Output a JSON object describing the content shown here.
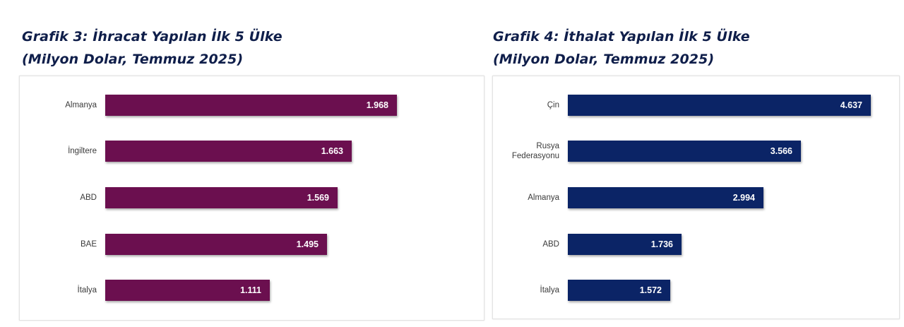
{
  "colors": {
    "export_bar": "#6b0f4f",
    "import_bar": "#0b2466",
    "title": "#0f1e4a"
  },
  "chart_data": [
    {
      "type": "bar",
      "orientation": "horizontal",
      "title": "Grafik 3: İhracat Yapılan İlk 5 Ülke",
      "subtitle": "(Milyon Dolar, Temmuz 2025)",
      "categories": [
        "Almanya",
        "İngiltere",
        "ABD",
        "BAE",
        "İtalya"
      ],
      "values": [
        1968,
        1663,
        1569,
        1495,
        1111
      ],
      "labels": [
        "1.968",
        "1.663",
        "1.569",
        "1.495",
        "1.111"
      ],
      "xlabel": "",
      "ylabel": "",
      "grid": false,
      "legend": null,
      "color": "#6b0f4f"
    },
    {
      "type": "bar",
      "orientation": "horizontal",
      "title": "Grafik 4: İthalat Yapılan İlk 5 Ülke",
      "subtitle": "(Milyon Dolar, Temmuz 2025)",
      "categories": [
        "Çin",
        "Rusya Federasyonu",
        "Almanya",
        "ABD",
        "İtalya"
      ],
      "values": [
        4637,
        3566,
        2994,
        1736,
        1572
      ],
      "labels": [
        "4.637",
        "3.566",
        "2.994",
        "1.736",
        "1.572"
      ],
      "xlabel": "",
      "ylabel": "",
      "grid": false,
      "legend": null,
      "color": "#0b2466"
    }
  ],
  "left": {
    "title_line1": "Grafik 3: İhracat Yapılan İlk 5 Ülke",
    "title_line2": "(Milyon Dolar, Temmuz 2025)"
  },
  "right": {
    "title_line1": "Grafik 4: İthalat Yapılan İlk 5 Ülke",
    "title_line2": "(Milyon Dolar, Temmuz 2025)"
  }
}
